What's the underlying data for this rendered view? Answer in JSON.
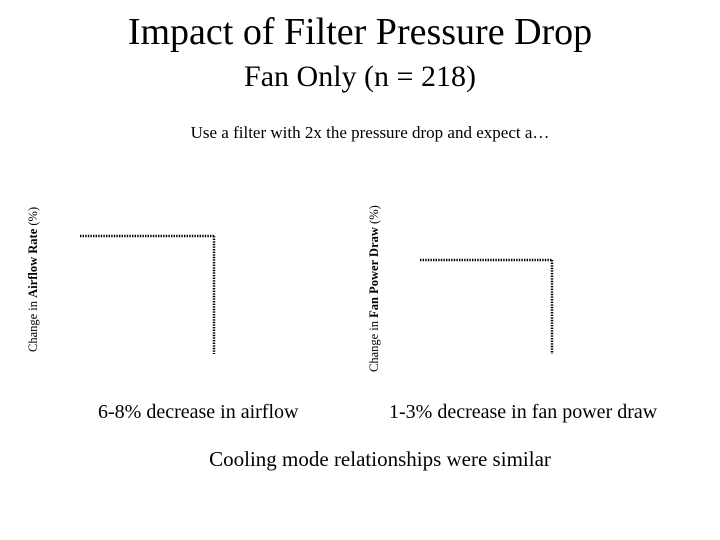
{
  "title": "Impact of Filter Pressure Drop",
  "subtitle": "Fan Only (n = 218)",
  "lead": "Use a filter with 2x the pressure drop and expect a…",
  "note": "Cooling mode relationships were similar",
  "chart_data": [
    {
      "type": "line",
      "ylabel_prefix": "Change in ",
      "ylabel_bold": "Airflow Rate",
      "ylabel_suffix": " (%)",
      "caption": "6-8% decrease in airflow",
      "grid": false,
      "legend": "none"
    },
    {
      "type": "line",
      "ylabel_prefix": "Change in ",
      "ylabel_bold": "Fan Power Draw",
      "ylabel_suffix": " (%)",
      "caption": "1-3% decrease in fan power draw",
      "grid": false,
      "legend": "none"
    }
  ]
}
